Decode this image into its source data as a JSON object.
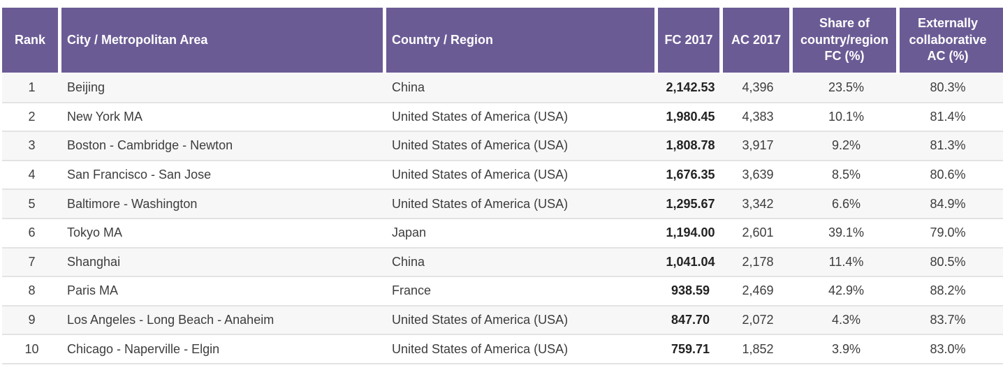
{
  "colors": {
    "header_bg": "#6b5b95",
    "header_text": "#ffffff",
    "body_text": "#3d3d3d",
    "fc_value_text": "#222222",
    "odd_row_bg": "#f7f7f7",
    "even_row_bg": "#ffffff",
    "row_separator": "#e3e3e3",
    "column_gap": "#ffffff"
  },
  "chart_data": {
    "type": "table",
    "legend_position": "none",
    "grid": "horizontal-row-separators",
    "columns": [
      {
        "key": "rank",
        "label": "Rank"
      },
      {
        "key": "city",
        "label": "City / Metropolitan Area"
      },
      {
        "key": "country",
        "label": "Country / Region"
      },
      {
        "key": "fc_2017",
        "label": "FC 2017"
      },
      {
        "key": "ac_2017",
        "label": "AC 2017"
      },
      {
        "key": "share_of_country_region_fc_pct",
        "label": "Share of country/region FC (%)"
      },
      {
        "key": "externally_collaborative_ac_pct",
        "label": "Externally collaborative AC (%)"
      }
    ],
    "rows": [
      [
        "1",
        "Beijing",
        "China",
        "2,142.53",
        "4,396",
        "23.5%",
        "80.3%"
      ],
      [
        "2",
        "New York MA",
        "United States of America (USA)",
        "1,980.45",
        "4,383",
        "10.1%",
        "81.4%"
      ],
      [
        "3",
        "Boston - Cambridge - Newton",
        "United States of America (USA)",
        "1,808.78",
        "3,917",
        "9.2%",
        "81.3%"
      ],
      [
        "4",
        "San Francisco - San Jose",
        "United States of America (USA)",
        "1,676.35",
        "3,639",
        "8.5%",
        "80.6%"
      ],
      [
        "5",
        "Baltimore - Washington",
        "United States of America (USA)",
        "1,295.67",
        "3,342",
        "6.6%",
        "84.9%"
      ],
      [
        "6",
        "Tokyo MA",
        "Japan",
        "1,194.00",
        "2,601",
        "39.1%",
        "79.0%"
      ],
      [
        "7",
        "Shanghai",
        "China",
        "1,041.04",
        "2,178",
        "11.4%",
        "80.5%"
      ],
      [
        "8",
        "Paris MA",
        "France",
        "938.59",
        "2,469",
        "42.9%",
        "88.2%"
      ],
      [
        "9",
        "Los Angeles - Long Beach - Anaheim",
        "United States of America (USA)",
        "847.70",
        "2,072",
        "4.3%",
        "83.7%"
      ],
      [
        "10",
        "Chicago - Naperville - Elgin",
        "United States of America (USA)",
        "759.71",
        "1,852",
        "3.9%",
        "83.0%"
      ]
    ]
  }
}
